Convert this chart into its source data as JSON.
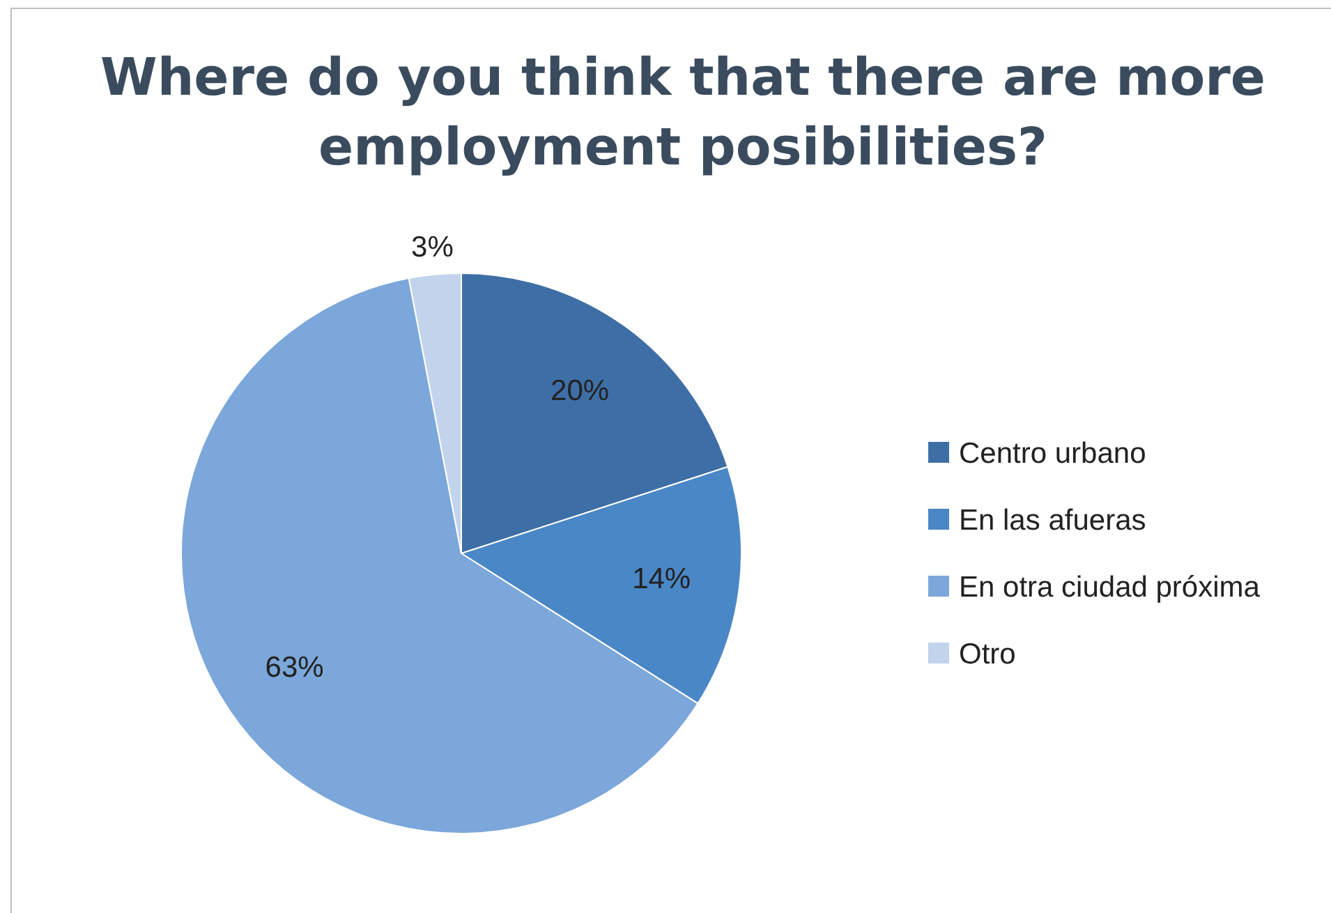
{
  "chart_data": {
    "type": "pie",
    "title": "Where do you think that there are more employment posibilities?",
    "categories": [
      "Centro urbano",
      "En las afueras",
      "En otra ciudad próxima",
      "Otro"
    ],
    "values": [
      20,
      14,
      63,
      3
    ],
    "value_labels": [
      "20%",
      "14%",
      "63%",
      "3%"
    ],
    "colors": [
      "#3e6ea6",
      "#4a87c6",
      "#7ba7da",
      "#c2d3ec"
    ],
    "legend": "right"
  }
}
